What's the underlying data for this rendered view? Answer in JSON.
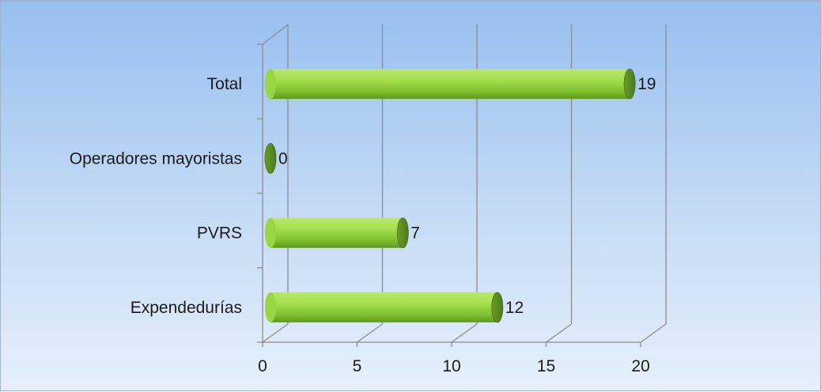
{
  "chart_data": {
    "type": "bar",
    "orientation": "horizontal",
    "style": "3d-cylinder",
    "categories": [
      "Expendedurías",
      "PVRS",
      "Operadores mayoristas",
      "Total"
    ],
    "values": [
      12,
      7,
      0,
      19
    ],
    "xlim": [
      0,
      20
    ],
    "xticks": [
      0,
      5,
      10,
      15,
      20
    ],
    "data_labels": [
      "12",
      "7",
      "0",
      "19"
    ],
    "grid": true,
    "legend": "none",
    "bar_color": "#8ed23c",
    "bar_dark": "#5c8a24",
    "background_top": "#96bff0",
    "background_bottom": "#e6f0fb"
  }
}
